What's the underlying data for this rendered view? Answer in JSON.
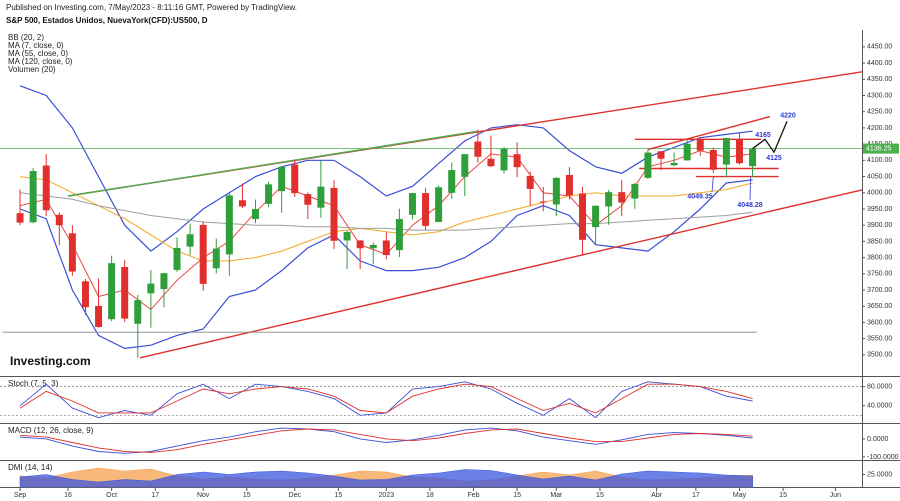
{
  "header": "Published on Investing.com, 7/May/2023 - 8:11:16 GMT, Powered by TradingView.",
  "logo": "Investing.com",
  "chart_data": [
    {
      "type": "candlestick",
      "title": "S&P 500, Estados Unidos, NuevaYork(CFD):US500, D",
      "up_color": "#2e9f3a",
      "down_color": "#e0302e",
      "xlim": [
        -4.6,
        193.1
      ],
      "ylim": [
        3438,
        4502
      ],
      "xticks": [
        {
          "value": 0,
          "label": "Sep"
        },
        {
          "value": 11,
          "label": "16"
        },
        {
          "value": 21,
          "label": "Oct"
        },
        {
          "value": 31,
          "label": "17"
        },
        {
          "value": 42,
          "label": "Nov"
        },
        {
          "value": 52,
          "label": "15"
        },
        {
          "value": 63,
          "label": "Dec"
        },
        {
          "value": 73,
          "label": "15"
        },
        {
          "value": 84,
          "label": "2023"
        },
        {
          "value": 94,
          "label": "18"
        },
        {
          "value": 104,
          "label": "Feb"
        },
        {
          "value": 114,
          "label": "15"
        },
        {
          "value": 123,
          "label": "Mar"
        },
        {
          "value": 133,
          "label": "15"
        },
        {
          "value": 146,
          "label": "Abr"
        },
        {
          "value": 155,
          "label": "17"
        },
        {
          "value": 165,
          "label": "May"
        },
        {
          "value": 175,
          "label": "15"
        },
        {
          "value": 187,
          "label": "Jun"
        }
      ],
      "yticks": [
        {
          "value": 3500,
          "label": "3500.00"
        },
        {
          "value": 3550,
          "label": "3550.00"
        },
        {
          "value": 3600,
          "label": "3600.00"
        },
        {
          "value": 3650,
          "label": "3650.00"
        },
        {
          "value": 3700,
          "label": "3700.00"
        },
        {
          "value": 3750,
          "label": "3750.00"
        },
        {
          "value": 3800,
          "label": "3800.00"
        },
        {
          "value": 3850,
          "label": "3850.00"
        },
        {
          "value": 3900,
          "label": "3900.00"
        },
        {
          "value": 3950,
          "label": "3950.00"
        },
        {
          "value": 4000,
          "label": "4000.00"
        },
        {
          "value": 4050,
          "label": "4050.00"
        },
        {
          "value": 4100,
          "label": "4100.00"
        },
        {
          "value": 4150,
          "label": "4150.00"
        },
        {
          "value": 4200,
          "label": "4200.00"
        },
        {
          "value": 4250,
          "label": "4250.00"
        },
        {
          "value": 4300,
          "label": "4300.00"
        },
        {
          "value": 4350,
          "label": "4350.00"
        },
        {
          "value": 4400,
          "label": "4400.00"
        },
        {
          "value": 4450,
          "label": "4450.00"
        }
      ],
      "x": [
        0,
        3,
        6,
        9,
        12,
        15,
        18,
        21,
        24,
        27,
        30,
        33,
        36,
        39,
        42,
        45,
        48,
        51,
        54,
        57,
        60,
        63,
        66,
        69,
        72,
        75,
        78,
        81,
        84,
        87,
        90,
        93,
        96,
        99,
        102,
        105,
        108,
        111,
        114,
        117,
        120,
        123,
        126,
        129,
        132,
        135,
        138,
        141,
        144,
        147,
        150,
        153,
        156,
        159,
        162,
        165,
        168
      ],
      "open": [
        3937,
        3909,
        4084,
        3932,
        3875,
        3727,
        3651,
        3610,
        3771,
        3596,
        3690,
        3703,
        3762,
        3834,
        3901,
        3767,
        3810,
        3977,
        3919,
        3966,
        4005,
        4087,
        3996,
        3954,
        4015,
        3853,
        3853,
        3829,
        3853,
        3823,
        3932,
        3999,
        3910,
        4000,
        4049,
        4158,
        4105,
        4069,
        4119,
        4052,
        3973,
        3964,
        4055,
        3998,
        3894,
        3958,
        4002,
        3982,
        4046,
        4128,
        4085,
        4100,
        4164,
        4132,
        4087,
        4166,
        4082
      ],
      "high": [
        4010,
        4076,
        4119,
        3940,
        3900,
        3734,
        3736,
        3806,
        3793,
        3685,
        3762,
        3753,
        3862,
        3905,
        3911,
        3859,
        4001,
        4028,
        3979,
        4034,
        4080,
        4101,
        4001,
        4100,
        4039,
        3883,
        3855,
        3846,
        3878,
        3951,
        4000,
        4015,
        4023,
        4094,
        4120,
        4195,
        4176,
        4141,
        4156,
        4065,
        4018,
        4048,
        4079,
        4018,
        3961,
        4009,
        4039,
        4030,
        4133,
        4128,
        4124,
        4163,
        4169,
        4139,
        4170,
        4187,
        4139
      ],
      "low": [
        3900,
        3906,
        3928,
        3838,
        3744,
        3623,
        3584,
        3604,
        3602,
        3491,
        3584,
        3647,
        3756,
        3808,
        3698,
        3751,
        3744,
        3953,
        3906,
        3955,
        3938,
        3987,
        3919,
        3923,
        3827,
        3765,
        3765,
        3780,
        3795,
        3802,
        3918,
        3885,
        3909,
        3981,
        3990,
        4093,
        4079,
        4060,
        4048,
        3960,
        3943,
        3928,
        3980,
        3808,
        3838,
        3901,
        3928,
        3951,
        4043,
        4069,
        4082,
        4099,
        4114,
        4061,
        4049,
        4087,
        4048
      ],
      "close": [
        3908,
        4067,
        3946,
        3900,
        3757,
        3647,
        3586,
        3783,
        3612,
        3669,
        3720,
        3752,
        3830,
        3872,
        3719,
        3828,
        3992,
        3958,
        3950,
        4026,
        4080,
        3999,
        3963,
        4019,
        3852,
        3879,
        3829,
        3839,
        3808,
        3919,
        3999,
        3898,
        4017,
        4070,
        4119,
        4111,
        4082,
        4136,
        4079,
        4012,
        3970,
        4046,
        3992,
        3855,
        3960,
        4002,
        3970,
        4027,
        4124,
        4105,
        4092,
        4151,
        4130,
        4071,
        4169,
        4091,
        4136
      ],
      "overlay_x": [
        0,
        6,
        12,
        18,
        24,
        30,
        36,
        42,
        48,
        54,
        60,
        66,
        72,
        78,
        84,
        90,
        96,
        102,
        108,
        114,
        120,
        126,
        132,
        138,
        144,
        150,
        156,
        162,
        168
      ],
      "overlays": [
        {
          "name": "BB (20, 2)",
          "color": "#3a4fd6",
          "upper": [
            4330,
            4300,
            4200,
            4050,
            3900,
            3820,
            3880,
            3950,
            4000,
            4050,
            4080,
            4100,
            4100,
            4050,
            3990,
            4020,
            4090,
            4160,
            4200,
            4210,
            4200,
            4130,
            4080,
            4060,
            4110,
            4140,
            4170,
            4180,
            4190
          ],
          "lower": [
            3950,
            3920,
            3700,
            3560,
            3520,
            3530,
            3560,
            3580,
            3680,
            3700,
            3760,
            3830,
            3870,
            3790,
            3760,
            3760,
            3770,
            3800,
            3850,
            3930,
            3960,
            3930,
            3840,
            3830,
            3820,
            3880,
            3950,
            4030,
            4040
          ]
        },
        {
          "name": "MA (7, close, 0)",
          "color": "#e8473c",
          "values": [
            3960,
            3980,
            3840,
            3680,
            3700,
            3640,
            3730,
            3800,
            3850,
            3940,
            4020,
            3990,
            3960,
            3840,
            3810,
            3900,
            3960,
            4050,
            4120,
            4110,
            4000,
            3990,
            3900,
            3960,
            4080,
            4100,
            4130,
            4110,
            4120
          ]
        },
        {
          "name": "MA (55, close, 0)",
          "color": "#f5a623",
          "values": [
            4050,
            4040,
            4000,
            3960,
            3920,
            3870,
            3820,
            3790,
            3790,
            3800,
            3820,
            3850,
            3880,
            3890,
            3880,
            3870,
            3880,
            3910,
            3930,
            3950,
            3970,
            3990,
            4000,
            3990,
            3990,
            3990,
            4000,
            4010,
            4030
          ]
        },
        {
          "name": "MA (120, close, 0)",
          "color": "#9e9e9e",
          "values": [
            4000,
            3990,
            3980,
            3960,
            3945,
            3930,
            3920,
            3910,
            3905,
            3900,
            3900,
            3895,
            3895,
            3890,
            3890,
            3885,
            3885,
            3885,
            3890,
            3895,
            3900,
            3905,
            3905,
            3910,
            3915,
            3920,
            3925,
            3930,
            3940
          ]
        }
      ],
      "volume_label": "Volumen (20)",
      "last_price": 4136.25,
      "last_price_color": "#4caf50",
      "trendlines": [
        {
          "x": [
            11,
            193.1
          ],
          "values": [
            3990,
            4373
          ],
          "color": "#e0302e"
        },
        {
          "x": [
            27.5,
            193.1
          ],
          "values": [
            3491,
            4009
          ],
          "color": "#e0302e"
        },
        {
          "x": [
            11,
            105
          ],
          "values": [
            3990,
            4190
          ],
          "color": "#4caf50"
        },
        {
          "x": [
            144,
            172
          ],
          "values": [
            4133,
            4235
          ],
          "color": "#e0302e"
        },
        {
          "x": [
            141,
            170
          ],
          "values": [
            4165,
            4165
          ],
          "color": "#e0302e"
        },
        {
          "x": [
            142,
            174
          ],
          "values": [
            4075,
            4075
          ],
          "color": "#e0302e"
        },
        {
          "x": [
            155,
            174
          ],
          "values": [
            4050,
            4050
          ],
          "color": "#e0302e"
        },
        {
          "x": [
            -4,
            169
          ],
          "values": [
            3570,
            3570
          ],
          "color": "#888888"
        }
      ],
      "annotations": [
        4220,
        4165,
        4125,
        4049.35,
        4048.28
      ],
      "annotation_color": "#2b3bd1"
    },
    {
      "type": "line",
      "title": "Stoch (7, 5, 3)",
      "ylim": [
        6,
        98
      ],
      "yticks": [
        {
          "value": 80,
          "label": "80.0000"
        },
        {
          "value": 40,
          "label": "40.0000"
        }
      ],
      "levels": [
        80,
        20
      ],
      "x": [
        0,
        6,
        12,
        18,
        24,
        30,
        36,
        42,
        48,
        54,
        60,
        66,
        72,
        78,
        84,
        90,
        96,
        102,
        108,
        114,
        120,
        126,
        132,
        138,
        144,
        150,
        156,
        162,
        168
      ],
      "series": [
        {
          "color": "#3a4fd6",
          "values": [
            40,
            85,
            35,
            15,
            30,
            20,
            65,
            85,
            55,
            85,
            80,
            70,
            55,
            20,
            25,
            75,
            80,
            90,
            75,
            45,
            20,
            55,
            15,
            70,
            90,
            85,
            80,
            60,
            50
          ]
        },
        {
          "color": "#e0302e",
          "values": [
            35,
            70,
            50,
            25,
            25,
            25,
            50,
            75,
            65,
            75,
            80,
            75,
            60,
            30,
            25,
            60,
            75,
            85,
            80,
            55,
            30,
            45,
            25,
            55,
            85,
            85,
            80,
            70,
            55
          ]
        }
      ]
    },
    {
      "type": "line",
      "title": "MACD (12, 26, close, 9)",
      "ylim": [
        -117,
        83
      ],
      "yticks": [
        {
          "value": 0,
          "label": "0.0000"
        },
        {
          "value": -100,
          "label": "-100.0000"
        }
      ],
      "x": [
        0,
        6,
        12,
        18,
        24,
        30,
        36,
        42,
        48,
        54,
        60,
        66,
        72,
        78,
        84,
        90,
        96,
        102,
        108,
        114,
        120,
        126,
        132,
        138,
        144,
        150,
        156,
        162,
        168
      ],
      "series": [
        {
          "color": "#3a4fd6",
          "values": [
            10,
            0,
            -40,
            -70,
            -80,
            -70,
            -40,
            -10,
            10,
            40,
            60,
            55,
            40,
            0,
            -20,
            -5,
            20,
            50,
            60,
            45,
            10,
            -10,
            -30,
            -5,
            25,
            35,
            30,
            20,
            5
          ]
        },
        {
          "color": "#e0302e",
          "values": [
            20,
            10,
            -20,
            -50,
            -70,
            -75,
            -60,
            -30,
            -5,
            20,
            45,
            55,
            50,
            25,
            0,
            -10,
            5,
            30,
            50,
            55,
            30,
            5,
            -15,
            -15,
            5,
            25,
            30,
            25,
            15
          ]
        }
      ]
    },
    {
      "type": "area",
      "title": "DMI (14, 14)",
      "ylim": [
        0,
        52
      ],
      "yticks": [
        {
          "value": 25,
          "label": "25.0000"
        }
      ],
      "x": [
        0,
        6,
        12,
        18,
        24,
        30,
        36,
        42,
        48,
        54,
        60,
        66,
        72,
        78,
        84,
        90,
        96,
        102,
        108,
        114,
        120,
        126,
        132,
        138,
        144,
        150,
        156,
        162,
        168
      ],
      "series": [
        {
          "color": "#f6a04d",
          "values": [
            22,
            18,
            30,
            38,
            32,
            36,
            22,
            16,
            20,
            16,
            14,
            18,
            24,
            32,
            30,
            20,
            18,
            12,
            14,
            22,
            30,
            24,
            32,
            20,
            14,
            16,
            18,
            22,
            24
          ]
        },
        {
          "color": "#3b57e0",
          "values": [
            20,
            25,
            15,
            10,
            15,
            12,
            25,
            30,
            25,
            30,
            32,
            28,
            22,
            14,
            15,
            24,
            28,
            35,
            33,
            24,
            16,
            22,
            14,
            26,
            32,
            30,
            28,
            24,
            22
          ]
        }
      ]
    }
  ]
}
